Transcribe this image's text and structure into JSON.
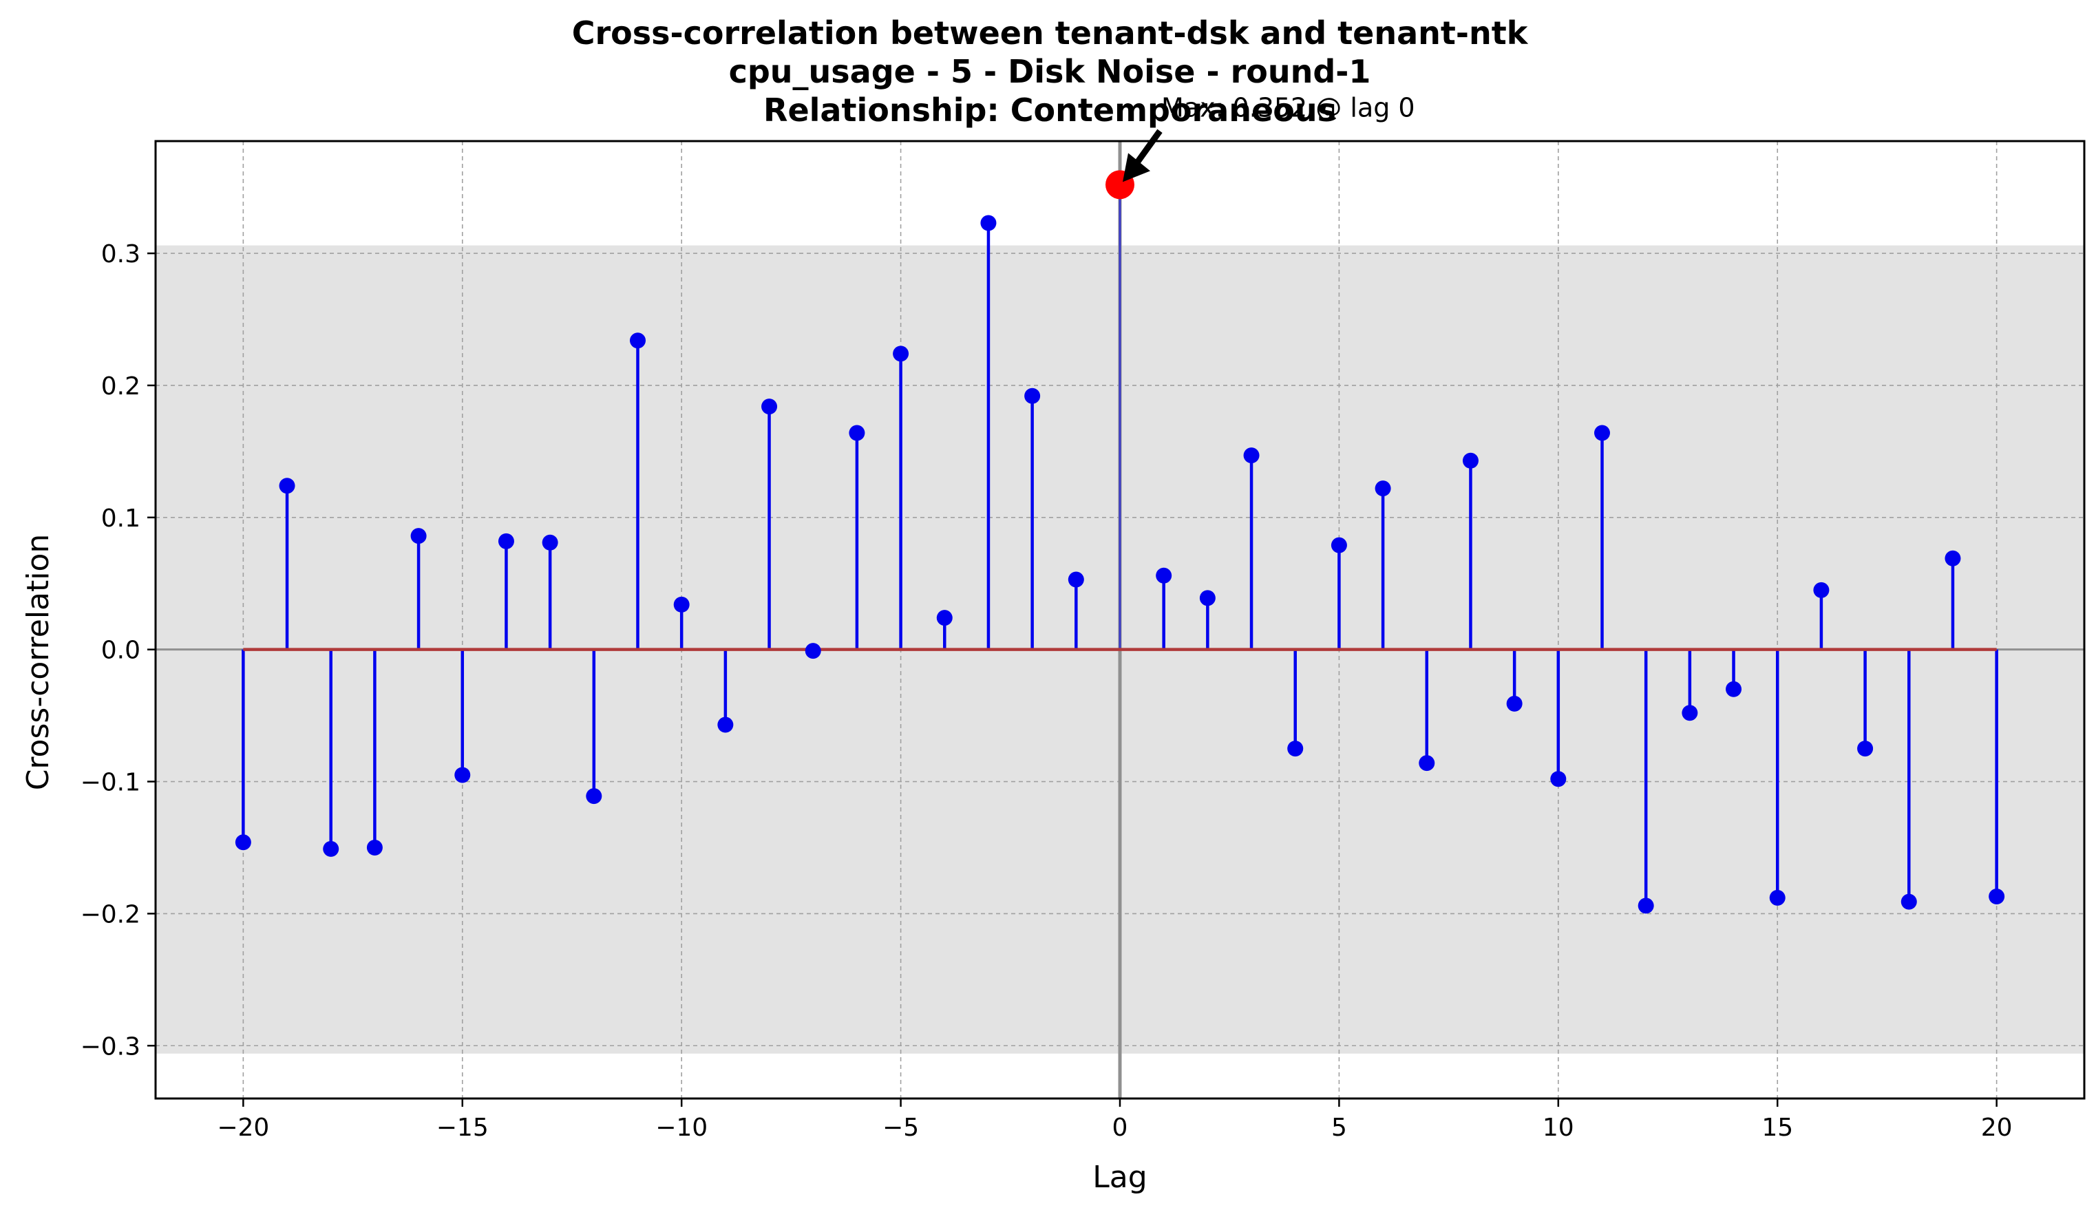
{
  "chart_data": {
    "type": "stem",
    "title_lines": [
      "Cross-correlation between tenant-dsk and tenant-ntk",
      "cpu_usage - 5 - Disk Noise - round-1",
      "Relationship: Contemporaneous"
    ],
    "xlabel": "Lag",
    "ylabel": "Cross-correlation",
    "xlim": [
      -22,
      22
    ],
    "ylim": [
      -0.34,
      0.385
    ],
    "x_ticks": [
      -20,
      -15,
      -10,
      -5,
      0,
      5,
      10,
      15,
      20
    ],
    "x_tick_labels": [
      "−20",
      "−15",
      "−10",
      "−5",
      "0",
      "5",
      "10",
      "15",
      "20"
    ],
    "y_ticks": [
      -0.3,
      -0.2,
      -0.1,
      0.0,
      0.1,
      0.2,
      0.3
    ],
    "y_tick_labels": [
      "−0.3",
      "−0.2",
      "−0.1",
      "0.0",
      "0.1",
      "0.2",
      "0.3"
    ],
    "grid": true,
    "confidence_band": [
      -0.306,
      0.306
    ],
    "lags": [
      -20,
      -19,
      -18,
      -17,
      -16,
      -15,
      -14,
      -13,
      -12,
      -11,
      -10,
      -9,
      -8,
      -7,
      -6,
      -5,
      -4,
      -3,
      -2,
      -1,
      0,
      1,
      2,
      3,
      4,
      5,
      6,
      7,
      8,
      9,
      10,
      11,
      12,
      13,
      14,
      15,
      16,
      17,
      18,
      19,
      20
    ],
    "values": [
      -0.146,
      0.124,
      -0.151,
      -0.15,
      0.086,
      -0.095,
      0.082,
      0.081,
      -0.111,
      0.234,
      0.034,
      -0.057,
      0.184,
      -0.001,
      0.164,
      0.224,
      0.024,
      0.323,
      0.192,
      0.053,
      0.352,
      0.056,
      0.039,
      0.147,
      -0.075,
      0.079,
      0.122,
      -0.086,
      0.143,
      -0.041,
      -0.098,
      0.164,
      -0.194,
      -0.048,
      -0.03,
      -0.188,
      0.045,
      -0.075,
      -0.191,
      0.069,
      -0.187
    ],
    "max_point": {
      "lag": 0,
      "value": 0.352
    },
    "annotation": "Max: 0.352 @ lag 0",
    "colors": {
      "stem": "#0000ee",
      "marker": "#0000ee",
      "baseline": "#b03a3a",
      "max_marker": "#ff0000",
      "band": "#e3e3e3",
      "grid": "#a0a0a0",
      "zero_line": "#909090"
    }
  }
}
